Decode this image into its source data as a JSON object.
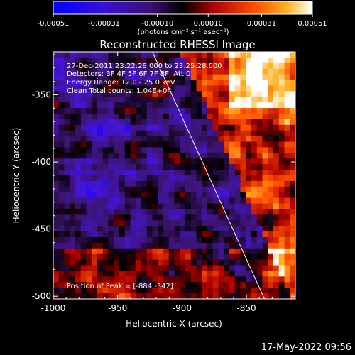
{
  "colorbar": {
    "ticks": [
      "-0.00051",
      "-0.00031",
      "-0.00010",
      "0.00010",
      "0.00031",
      "0.00051"
    ],
    "range": [
      -0.00051,
      0.00051
    ],
    "unit_label": "(photons cm⁻² s⁻¹ asec⁻²)",
    "colors": [
      "#0000ff",
      "#5010c0",
      "#000000",
      "#c00000",
      "#ff8000",
      "#ffffff"
    ]
  },
  "chart_data": {
    "type": "heatmap",
    "title": "Reconstructed RHESSI Image",
    "xlabel": "Heliocentric X (arcsec)",
    "ylabel": "Heliocentric Y (arcsec)",
    "xlim": [
      -1000,
      -812
    ],
    "ylim": [
      -502,
      -318
    ],
    "x_ticks": [
      -1000,
      -950,
      -900,
      -850
    ],
    "y_ticks": [
      -350,
      -400,
      -450,
      -500
    ],
    "value_range": [
      -0.00051,
      0.00051
    ],
    "peak_position": [
      -884,
      -342
    ],
    "limb_line": {
      "x": [
        -923,
        -836
      ],
      "y": [
        -318,
        -502
      ]
    },
    "annotations": [
      "27-Dec-2011 23:22:28.000 to 23:25:28.000",
      "Detectors: 3F 4F 5F 6F 7F 8F, Att 0",
      "Energy Range: 12.0 - 25.0 keV",
      "Clean    Total counts: 1.04E+04"
    ],
    "peak_label": "Position of Peak = [-884,-342]",
    "grid": false
  },
  "footer": {
    "timestamp": "17-May-2022 09:56"
  }
}
